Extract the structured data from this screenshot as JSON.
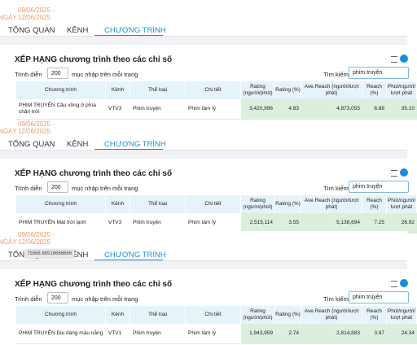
{
  "panels": [
    {
      "date_label": "NGÀY",
      "date_from": "09/06/2025 -",
      "date_to": "12/06/2025",
      "tabs": [
        "TỔNG QUAN",
        "KÊNH",
        "CHƯƠNG TRÌNH"
      ],
      "active_tab": 2,
      "table_title": "XẾP HẠNG chương trình theo các chỉ số",
      "show_label": "Trình diễn",
      "page_size": "200",
      "per_page_label": "mục nhập trên mỗi trang",
      "search_label": "Tìm kiếm",
      "search_value": "phim truyện",
      "columns": [
        "Chương trình",
        "Kênh",
        "Thể loại",
        "Chi tiết",
        "Rating (người/phút)",
        "Rating (%)",
        "Ave.Reach (người/lượt phát)",
        "Reach (%)",
        "Phút/người/ lượt phát"
      ],
      "row": [
        "PHIM TRUYỆN Cầu vồng ở phía chân trời",
        "VTV3",
        "Phim truyện",
        "Phim tâm lý",
        "3,420,996",
        "4.83",
        "4,873,055",
        "6.88",
        "35.10"
      ]
    },
    {
      "date_label": "NGÀY",
      "date_from": "09/06/2025 -",
      "date_to": "12/06/2025",
      "tabs": [
        "TỔNG QUAN",
        "KÊNH",
        "CHƯƠNG TRÌNH"
      ],
      "active_tab": 2,
      "table_title": "XẾP HẠNG chương trình theo các chỉ số",
      "show_label": "Trình diễn",
      "page_size": "200",
      "per_page_label": "mục nhập trên mỗi trang",
      "search_label": "Tìm kiếm",
      "search_value": "phim truyện",
      "columns": [
        "Chương trình",
        "Kênh",
        "Thể loại",
        "Chi tiết",
        "Rating (người/phút)",
        "Rating (%)",
        "Ave.Reach (người/lượt phát)",
        "Reach (%)",
        "Phút/người/ lượt phát"
      ],
      "row": [
        "PHIM TRUYỆN Mát trời lạnh",
        "VTV3",
        "Phim truyện",
        "Phim tâm lý",
        "2,515,114",
        "3.55",
        "5,138,694",
        "7.25",
        "26.92"
      ]
    },
    {
      "date_label": "NGÀY",
      "date_from": "09/06/2025 -",
      "date_to": "12/06/2025",
      "tabs": [
        "TỔNG QUAN",
        "KÊNH",
        "CHƯƠNG TRÌNH"
      ],
      "active_tab": 2,
      "tooltip": "75568.86516666666",
      "table_title": "XẾP HẠNG chương trình theo các chỉ số",
      "show_label": "Trình diễn",
      "page_size": "200",
      "per_page_label": "mục nhập trên mỗi trang",
      "search_label": "Tìm kiếm",
      "search_value": "phim truyện",
      "columns": [
        "Chương trình",
        "Kênh",
        "Thể loại",
        "Chi tiết",
        "Rating (người/phút)",
        "Rating (%)",
        "Ave.Reach (người/lượt phát)",
        "Reach (%)",
        "Phút/người/ lượt phát"
      ],
      "row": [
        "PHIM TRUYỆN Dịu dàng màu nắng",
        "VTV1",
        "Phim truyện",
        "Phim tâm lý",
        "1,943,959",
        "2.74",
        "2,814,883",
        "3.97",
        "24.34"
      ]
    }
  ]
}
